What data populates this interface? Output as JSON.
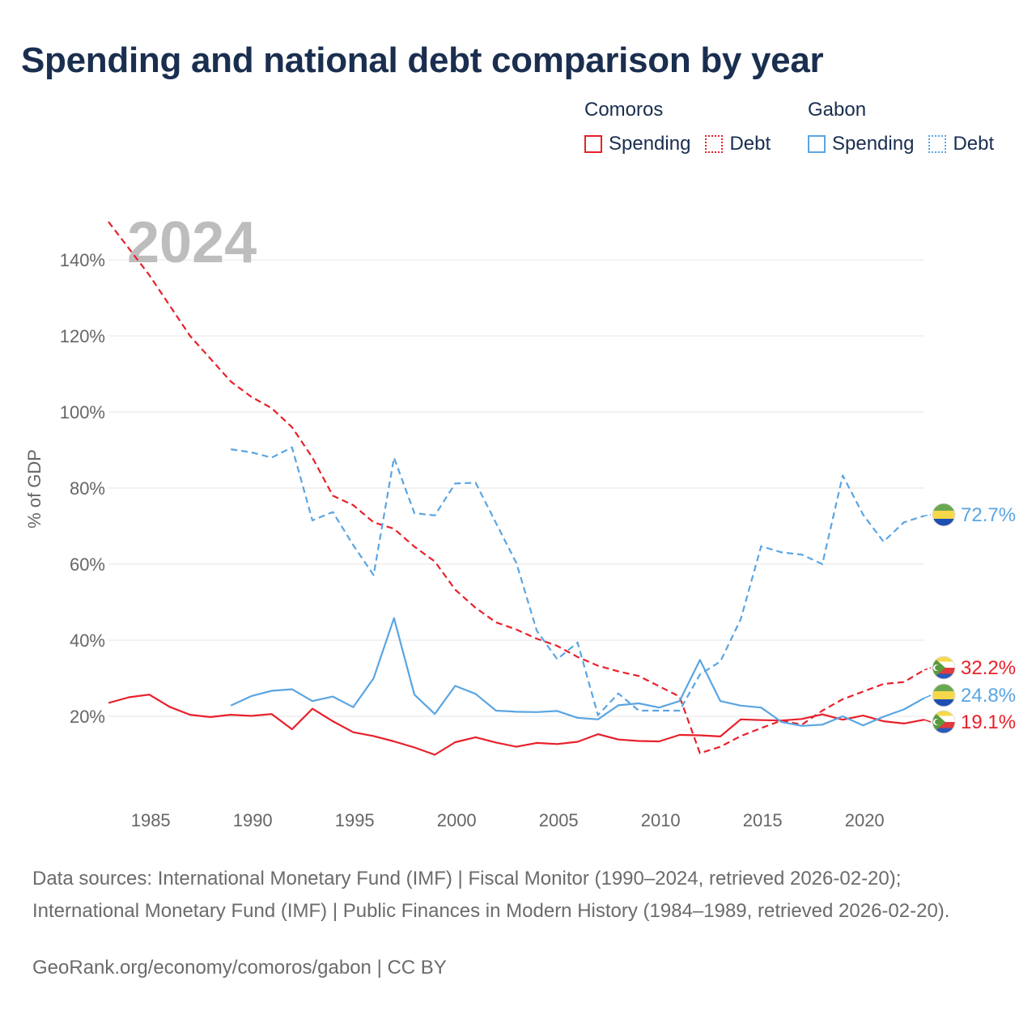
{
  "title": "Spending and national debt comparison by year",
  "legend": {
    "groups": [
      {
        "name": "Comoros",
        "color": "#e8202a",
        "items": [
          {
            "label": "Spending",
            "style": "solid"
          },
          {
            "label": "Debt",
            "style": "dotted"
          }
        ]
      },
      {
        "name": "Gabon",
        "color": "#5aa5e2",
        "items": [
          {
            "label": "Spending",
            "style": "solid"
          },
          {
            "label": "Debt",
            "style": "dotted"
          }
        ]
      }
    ]
  },
  "sources": "Data sources: International Monetary Fund (IMF) | Fiscal Monitor (1990–2024, retrieved 2026-02-20); International Monetary Fund (IMF) | Public Finances in Modern History (1984–1989, retrieved 2026-02-20).",
  "credit": "GeoRank.org/economy/comoros/gabon | CC BY",
  "chart_data": {
    "type": "line",
    "title": "Spending and national debt comparison by year",
    "year_label": "2024",
    "ylabel": "% of GDP",
    "xlabel": "",
    "xlim": [
      1984,
      2024
    ],
    "ylim": [
      0,
      150
    ],
    "x_ticks": [
      1985,
      1990,
      1995,
      2000,
      2005,
      2010,
      2015,
      2020
    ],
    "x_tick_labels": [
      "1985",
      "1990",
      "1995",
      "2000",
      "2005",
      "2010",
      "2015",
      "2020"
    ],
    "y_ticks": [
      20,
      40,
      60,
      80,
      100,
      120,
      140
    ],
    "y_tick_labels": [
      "20%",
      "40%",
      "60%",
      "80%",
      "100%",
      "120%",
      "140%"
    ],
    "grid": true,
    "series": [
      {
        "name": "Comoros Debt",
        "country": "Comoros",
        "metric": "Debt",
        "color": "#e8202a",
        "dash": "dashed",
        "x": [
          1984,
          1985,
          1986,
          1987,
          1988,
          1989,
          1990,
          1991,
          1992,
          1993,
          1994,
          1995,
          1996,
          1997,
          1998,
          1999,
          2000,
          2001,
          2002,
          2003,
          2004,
          2005,
          2006,
          2007,
          2008,
          2009,
          2010,
          2011,
          2012,
          2013,
          2014,
          2015,
          2016,
          2017,
          2018,
          2019,
          2020,
          2021,
          2022,
          2023,
          2024
        ],
        "values": [
          150,
          143,
          136,
          128,
          120,
          114,
          108,
          104,
          101,
          96,
          88,
          78,
          75.5,
          71,
          69.3,
          64.6,
          60.7,
          53.3,
          48.5,
          44.7,
          42.8,
          40.4,
          38.5,
          35.6,
          33.3,
          31.8,
          30.6,
          27.9,
          25.2,
          10.3,
          12,
          14.8,
          16.9,
          18.9,
          17.8,
          21.5,
          24.5,
          26.5,
          28.5,
          29,
          32.2
        ],
        "end_label": "32.2%"
      },
      {
        "name": "Comoros Spending",
        "country": "Comoros",
        "metric": "Spending",
        "color": "#e8202a",
        "dash": "solid",
        "x": [
          1984,
          1985,
          1986,
          1987,
          1988,
          1989,
          1990,
          1991,
          1992,
          1993,
          1994,
          1995,
          1996,
          1997,
          1998,
          1999,
          2000,
          2001,
          2002,
          2003,
          2004,
          2005,
          2006,
          2007,
          2008,
          2009,
          2010,
          2011,
          2012,
          2013,
          2014,
          2015,
          2016,
          2017,
          2018,
          2019,
          2020,
          2021,
          2022,
          2023,
          2024
        ],
        "values": [
          23.5,
          25,
          25.7,
          22.5,
          20.4,
          19.8,
          20.4,
          20.1,
          20.6,
          16.6,
          22,
          18.7,
          15.8,
          14.8,
          13.4,
          11.8,
          9.9,
          13.2,
          14.5,
          13.1,
          12,
          13,
          12.7,
          13.3,
          15.3,
          13.9,
          13.5,
          13.4,
          15.1,
          15,
          14.7,
          19.2,
          19,
          18.9,
          19.3,
          20.5,
          19.1,
          20.2,
          18.7,
          18.1,
          19.1
        ],
        "end_label": "19.1%"
      },
      {
        "name": "Gabon Debt",
        "country": "Gabon",
        "metric": "Debt",
        "color": "#5aa5e2",
        "dash": "dashed",
        "x": [
          1990,
          1991,
          1992,
          1993,
          1994,
          1995,
          1996,
          1997,
          1998,
          1999,
          2000,
          2001,
          2002,
          2003,
          2004,
          2005,
          2006,
          2007,
          2008,
          2009,
          2010,
          2011,
          2012,
          2013,
          2014,
          2015,
          2016,
          2017,
          2018,
          2019,
          2020,
          2021,
          2022,
          2023,
          2024
        ],
        "values": [
          90.2,
          89.4,
          88,
          90.7,
          71.5,
          73.7,
          65,
          57.1,
          88,
          73.4,
          72.8,
          81.2,
          81.4,
          70.8,
          60.3,
          42.5,
          35,
          39.4,
          20.3,
          26,
          21.5,
          21.5,
          21.5,
          31,
          34.4,
          45.5,
          64.7,
          63.1,
          62.5,
          60,
          83.3,
          73,
          65.9,
          71,
          72.7
        ],
        "end_label": "72.7%"
      },
      {
        "name": "Gabon Spending",
        "country": "Gabon",
        "metric": "Spending",
        "color": "#5aa5e2",
        "dash": "solid",
        "x": [
          1990,
          1991,
          1992,
          1993,
          1994,
          1995,
          1996,
          1997,
          1998,
          1999,
          2000,
          2001,
          2002,
          2003,
          2004,
          2005,
          2006,
          2007,
          2008,
          2009,
          2010,
          2011,
          2012,
          2013,
          2014,
          2015,
          2016,
          2017,
          2018,
          2019,
          2020,
          2021,
          2022,
          2023,
          2024
        ],
        "values": [
          22.8,
          25.3,
          26.7,
          27.1,
          24,
          25.2,
          22.4,
          30,
          45.8,
          25.7,
          20.6,
          28,
          25.9,
          21.5,
          21.2,
          21.1,
          21.4,
          19.6,
          19.2,
          22.9,
          23.4,
          22.3,
          24,
          34.8,
          24,
          22.8,
          22.3,
          18.5,
          17.5,
          17.8,
          20,
          17.6,
          19.9,
          21.8,
          24.8
        ],
        "end_label": "24.8%"
      }
    ]
  }
}
